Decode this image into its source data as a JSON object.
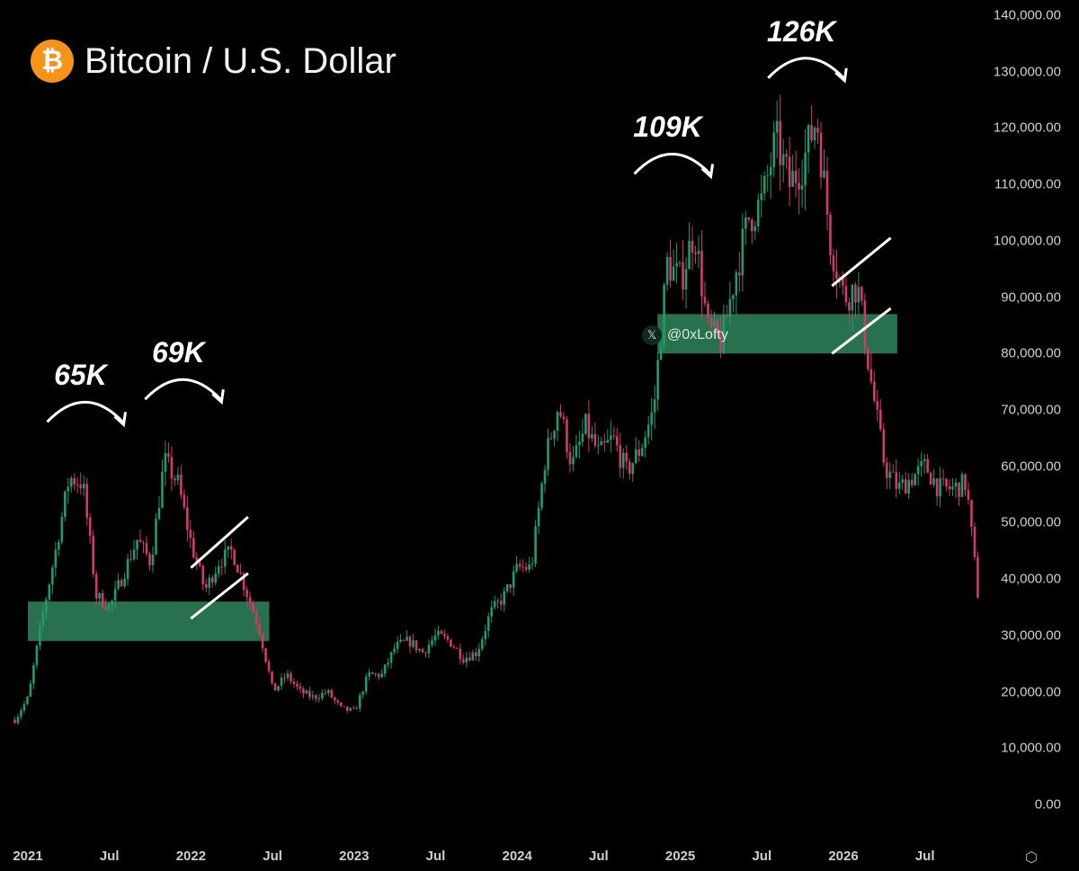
{
  "title": "Bitcoin / U.S. Dollar",
  "icon": "bitcoin-icon",
  "watermark": "@0xLofty",
  "colors": {
    "up": "#1f9a72",
    "down": "#d23a6a",
    "zone": "#3aa06f",
    "background": "#000000"
  },
  "chart_data": {
    "type": "candlestick",
    "title": "Bitcoin / U.S. Dollar",
    "ylim": [
      0,
      140000
    ],
    "y_ticks": [
      "140,000.00",
      "130,000.00",
      "120,000.00",
      "110,000.00",
      "100,000.00",
      "90,000.00",
      "80,000.00",
      "70,000.00",
      "60,000.00",
      "50,000.00",
      "40,000.00",
      "30,000.00",
      "20,000.00",
      "10,000.00",
      "0.00"
    ],
    "y_tick_values": [
      140000,
      130000,
      120000,
      110000,
      100000,
      90000,
      80000,
      70000,
      60000,
      50000,
      40000,
      30000,
      20000,
      10000,
      0
    ],
    "x_ticks": [
      "2021",
      "Jul",
      "2022",
      "Jul",
      "2023",
      "Jul",
      "2024",
      "Jul",
      "2025",
      "Jul",
      "2026",
      "Jul"
    ],
    "x_tick_values": [
      2021,
      2021.5,
      2022,
      2022.5,
      2023,
      2023.5,
      2024,
      2024.5,
      2025,
      2025.5,
      2026,
      2026.5
    ],
    "monthly_price_path": {
      "start_year": 2020.92,
      "step_years": 0.08333,
      "values": [
        15000,
        19000,
        33000,
        45000,
        58000,
        57000,
        37000,
        35000,
        41000,
        47000,
        43000,
        61000,
        57000,
        46000,
        38000,
        43000,
        45000,
        38000,
        31000,
        20000,
        23000,
        20000,
        19000,
        20000,
        17000,
        16500,
        23000,
        23000,
        28000,
        29000,
        27000,
        30000,
        29000,
        26000,
        27000,
        34000,
        37000,
        42000,
        42000,
        61000,
        71000,
        60000,
        67000,
        62000,
        65000,
        59000,
        63000,
        70000,
        96000,
        93000,
        102000,
        84000,
        82000,
        94000,
        104000,
        107000,
        118000,
        110000,
        114000,
        122000,
        100000,
        90000,
        92000,
        75000,
        60000,
        56000,
        58000,
        60000,
        56000,
        56000,
        57000,
        34000
      ]
    },
    "annotations": [
      {
        "label": "65K",
        "year": 2021.35,
        "value": 65000
      },
      {
        "label": "69K",
        "year": 2021.95,
        "value": 69000
      },
      {
        "label": "109K",
        "year": 2024.95,
        "value": 109000
      },
      {
        "label": "126K",
        "year": 2025.77,
        "value": 126000
      }
    ],
    "zones": [
      {
        "from": 2021.0,
        "to": 2022.48,
        "low": 29000,
        "high": 36000
      },
      {
        "from": 2024.86,
        "to": 2026.33,
        "low": 80000,
        "high": 87000
      }
    ],
    "channels": [
      {
        "from": 2022.0,
        "to": 2022.35,
        "upper": [
          42000,
          51000
        ],
        "lower": [
          33000,
          41000
        ]
      },
      {
        "from": 2025.93,
        "to": 2026.29,
        "upper": [
          92000,
          100500
        ],
        "lower": [
          80000,
          88000
        ]
      }
    ]
  }
}
